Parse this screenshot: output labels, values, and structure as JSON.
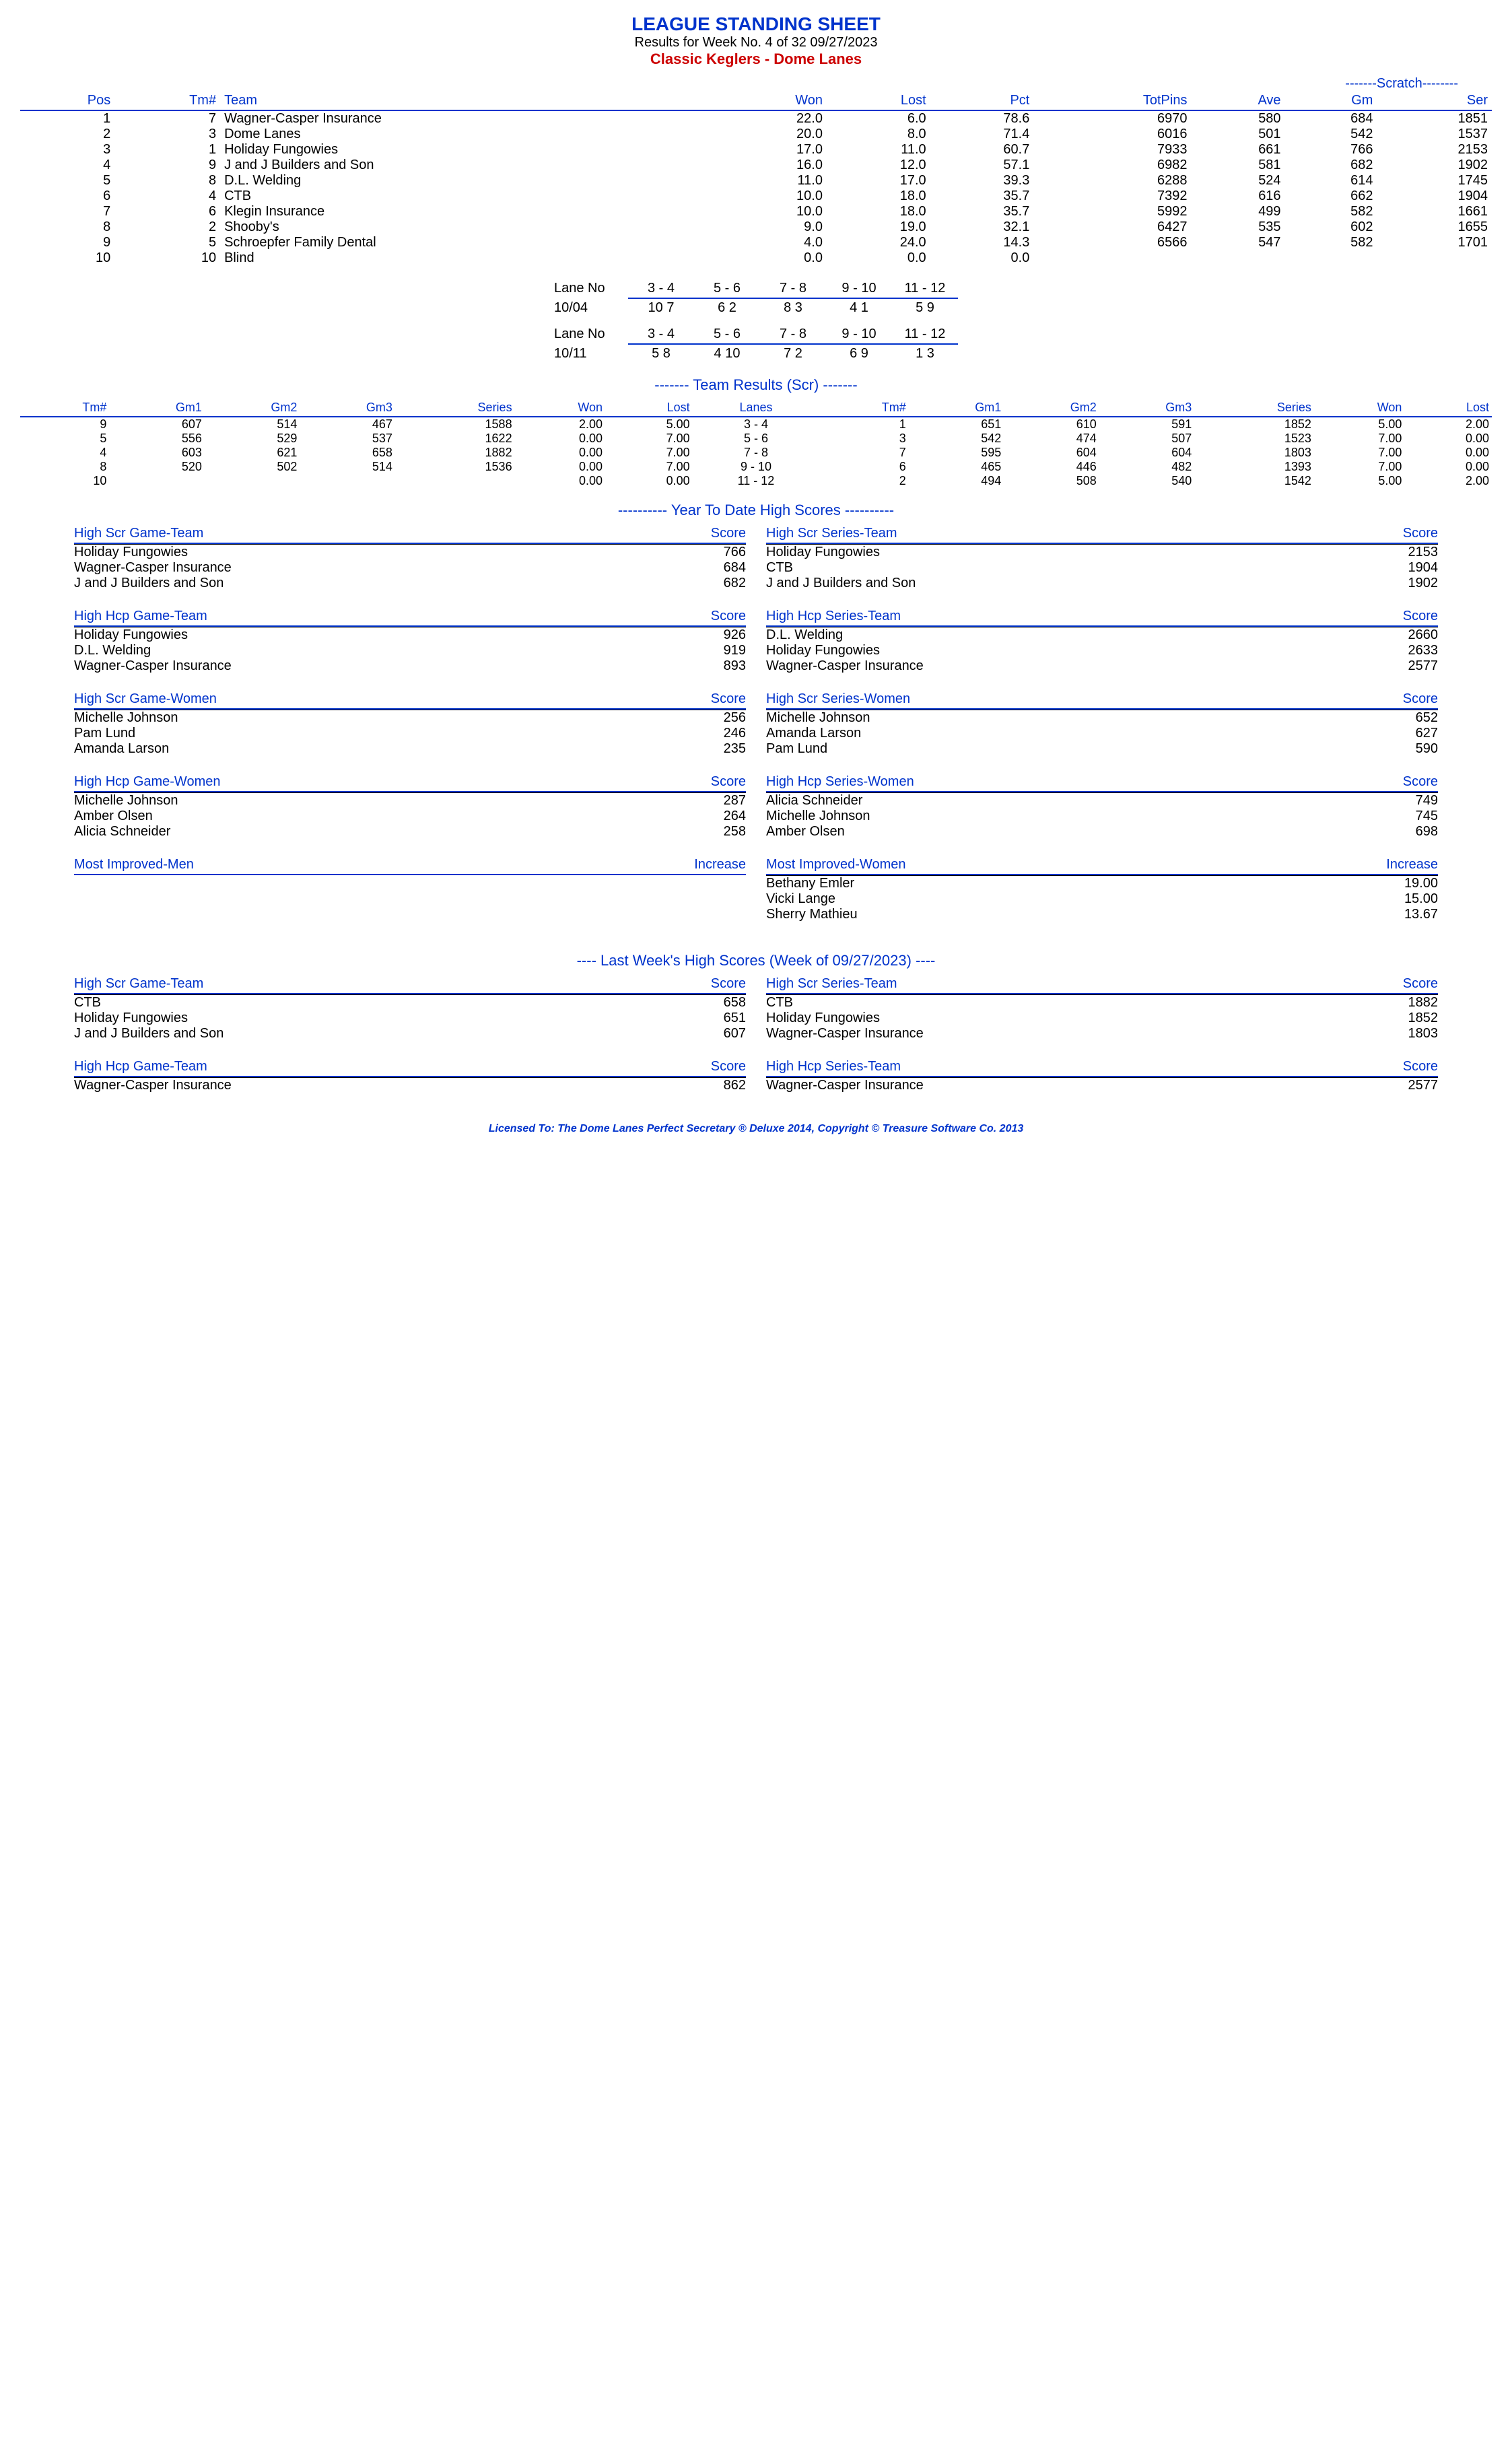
{
  "header": {
    "title": "LEAGUE STANDING SHEET",
    "subtitle": "Results for Week No. 4 of 32    09/27/2023",
    "league": "Classic Keglers - Dome Lanes",
    "scratch_label": "-------Scratch--------"
  },
  "standings": {
    "columns": [
      "Pos",
      "Tm#",
      "Team",
      "Won",
      "Lost",
      "Pct",
      "TotPins",
      "Ave",
      "Gm",
      "Ser"
    ],
    "rows": [
      [
        "1",
        "7",
        "Wagner-Casper Insurance",
        "22.0",
        "6.0",
        "78.6",
        "6970",
        "580",
        "684",
        "1851"
      ],
      [
        "2",
        "3",
        "Dome Lanes",
        "20.0",
        "8.0",
        "71.4",
        "6016",
        "501",
        "542",
        "1537"
      ],
      [
        "3",
        "1",
        "Holiday Fungowies",
        "17.0",
        "11.0",
        "60.7",
        "7933",
        "661",
        "766",
        "2153"
      ],
      [
        "4",
        "9",
        "J and J Builders and Son",
        "16.0",
        "12.0",
        "57.1",
        "6982",
        "581",
        "682",
        "1902"
      ],
      [
        "5",
        "8",
        "D.L. Welding",
        "11.0",
        "17.0",
        "39.3",
        "6288",
        "524",
        "614",
        "1745"
      ],
      [
        "6",
        "4",
        "CTB",
        "10.0",
        "18.0",
        "35.7",
        "7392",
        "616",
        "662",
        "1904"
      ],
      [
        "7",
        "6",
        "Klegin Insurance",
        "10.0",
        "18.0",
        "35.7",
        "5992",
        "499",
        "582",
        "1661"
      ],
      [
        "8",
        "2",
        "Shooby's",
        "9.0",
        "19.0",
        "32.1",
        "6427",
        "535",
        "602",
        "1655"
      ],
      [
        "9",
        "5",
        "Schroepfer Family Dental",
        "4.0",
        "24.0",
        "14.3",
        "6566",
        "547",
        "582",
        "1701"
      ],
      [
        "10",
        "10",
        "Blind",
        "0.0",
        "0.0",
        "0.0",
        "",
        "",
        "",
        ""
      ]
    ]
  },
  "lanes": [
    {
      "label": "Lane No",
      "pairs": [
        "3 - 4",
        "5 - 6",
        "7 - 8",
        "9 - 10",
        "11 - 12"
      ],
      "underline": true
    },
    {
      "label": "10/04",
      "pairs": [
        "10   7",
        "6   2",
        "8   3",
        "4   1",
        "5   9"
      ],
      "underline": false
    },
    {
      "label": "",
      "pairs": [
        "",
        "",
        "",
        "",
        ""
      ],
      "underline": false
    },
    {
      "label": "Lane No",
      "pairs": [
        "3 - 4",
        "5 - 6",
        "7 - 8",
        "9 - 10",
        "11 - 12"
      ],
      "underline": true
    },
    {
      "label": "10/11",
      "pairs": [
        "5   8",
        "4   10",
        "7   2",
        "6   9",
        "1   3"
      ],
      "underline": false
    }
  ],
  "team_results_title": "------- Team Results (Scr) -------",
  "team_results": {
    "columns": [
      "Tm#",
      "Gm1",
      "Gm2",
      "Gm3",
      "Series",
      "Won",
      "Lost",
      "Lanes",
      "Tm#",
      "Gm1",
      "Gm2",
      "Gm3",
      "Series",
      "Won",
      "Lost"
    ],
    "rows": [
      [
        "9",
        "607",
        "514",
        "467",
        "1588",
        "2.00",
        "5.00",
        "3 - 4",
        "1",
        "651",
        "610",
        "591",
        "1852",
        "5.00",
        "2.00"
      ],
      [
        "5",
        "556",
        "529",
        "537",
        "1622",
        "0.00",
        "7.00",
        "5 - 6",
        "3",
        "542",
        "474",
        "507",
        "1523",
        "7.00",
        "0.00"
      ],
      [
        "4",
        "603",
        "621",
        "658",
        "1882",
        "0.00",
        "7.00",
        "7 - 8",
        "7",
        "595",
        "604",
        "604",
        "1803",
        "7.00",
        "0.00"
      ],
      [
        "8",
        "520",
        "502",
        "514",
        "1536",
        "0.00",
        "7.00",
        "9 - 10",
        "6",
        "465",
        "446",
        "482",
        "1393",
        "7.00",
        "0.00"
      ],
      [
        "10",
        "",
        "",
        "",
        "",
        "0.00",
        "0.00",
        "11 - 12",
        "2",
        "494",
        "508",
        "540",
        "1542",
        "5.00",
        "2.00"
      ]
    ]
  },
  "ytd_title": "---------- Year To Date High Scores ----------",
  "ytd_left": [
    {
      "title": "High Scr Game-Team",
      "score_label": "Score",
      "rows": [
        [
          "Holiday Fungowies",
          "766"
        ],
        [
          "Wagner-Casper Insurance",
          "684"
        ],
        [
          "J and J Builders and Son",
          "682"
        ]
      ]
    },
    {
      "title": "High Hcp Game-Team",
      "score_label": "Score",
      "rows": [
        [
          "Holiday Fungowies",
          "926"
        ],
        [
          "D.L. Welding",
          "919"
        ],
        [
          "Wagner-Casper Insurance",
          "893"
        ]
      ]
    },
    {
      "title": "High Scr Game-Women",
      "score_label": "Score",
      "rows": [
        [
          "Michelle Johnson",
          "256"
        ],
        [
          "Pam Lund",
          "246"
        ],
        [
          "Amanda Larson",
          "235"
        ]
      ]
    },
    {
      "title": "High Hcp Game-Women",
      "score_label": "Score",
      "rows": [
        [
          "Michelle Johnson",
          "287"
        ],
        [
          "Amber Olsen",
          "264"
        ],
        [
          "Alicia Schneider",
          "258"
        ]
      ]
    },
    {
      "title": "Most Improved-Men",
      "score_label": "Increase",
      "rows": []
    }
  ],
  "ytd_right": [
    {
      "title": "High Scr Series-Team",
      "score_label": "Score",
      "rows": [
        [
          "Holiday Fungowies",
          "2153"
        ],
        [
          "CTB",
          "1904"
        ],
        [
          "J and J Builders and Son",
          "1902"
        ]
      ]
    },
    {
      "title": "High Hcp Series-Team",
      "score_label": "Score",
      "rows": [
        [
          "D.L. Welding",
          "2660"
        ],
        [
          "Holiday Fungowies",
          "2633"
        ],
        [
          "Wagner-Casper Insurance",
          "2577"
        ]
      ]
    },
    {
      "title": "High Scr Series-Women",
      "score_label": "Score",
      "rows": [
        [
          "Michelle Johnson",
          "652"
        ],
        [
          "Amanda Larson",
          "627"
        ],
        [
          "Pam Lund",
          "590"
        ]
      ]
    },
    {
      "title": "High Hcp Series-Women",
      "score_label": "Score",
      "rows": [
        [
          "Alicia Schneider",
          "749"
        ],
        [
          "Michelle Johnson",
          "745"
        ],
        [
          "Amber Olsen",
          "698"
        ]
      ]
    },
    {
      "title": "Most Improved-Women",
      "score_label": "Increase",
      "rows": [
        [
          "Bethany Emler",
          "19.00"
        ],
        [
          "Vicki Lange",
          "15.00"
        ],
        [
          "Sherry Mathieu",
          "13.67"
        ]
      ]
    }
  ],
  "lw_title": "----  Last Week's High Scores   (Week of 09/27/2023)  ----",
  "lw_left": [
    {
      "title": "High Scr Game-Team",
      "score_label": "Score",
      "rows": [
        [
          "CTB",
          "658"
        ],
        [
          "Holiday Fungowies",
          "651"
        ],
        [
          "J and J Builders and Son",
          "607"
        ]
      ]
    },
    {
      "title": "High Hcp Game-Team",
      "score_label": "Score",
      "rows": [
        [
          "Wagner-Casper Insurance",
          "862"
        ]
      ]
    }
  ],
  "lw_right": [
    {
      "title": "High Scr Series-Team",
      "score_label": "Score",
      "rows": [
        [
          "CTB",
          "1882"
        ],
        [
          "Holiday Fungowies",
          "1852"
        ],
        [
          "Wagner-Casper Insurance",
          "1803"
        ]
      ]
    },
    {
      "title": "High Hcp Series-Team",
      "score_label": "Score",
      "rows": [
        [
          "Wagner-Casper Insurance",
          "2577"
        ]
      ]
    }
  ],
  "footer": "Licensed To: The Dome Lanes    Perfect Secretary ® Deluxe  2014, Copyright © Treasure Software Co. 2013"
}
